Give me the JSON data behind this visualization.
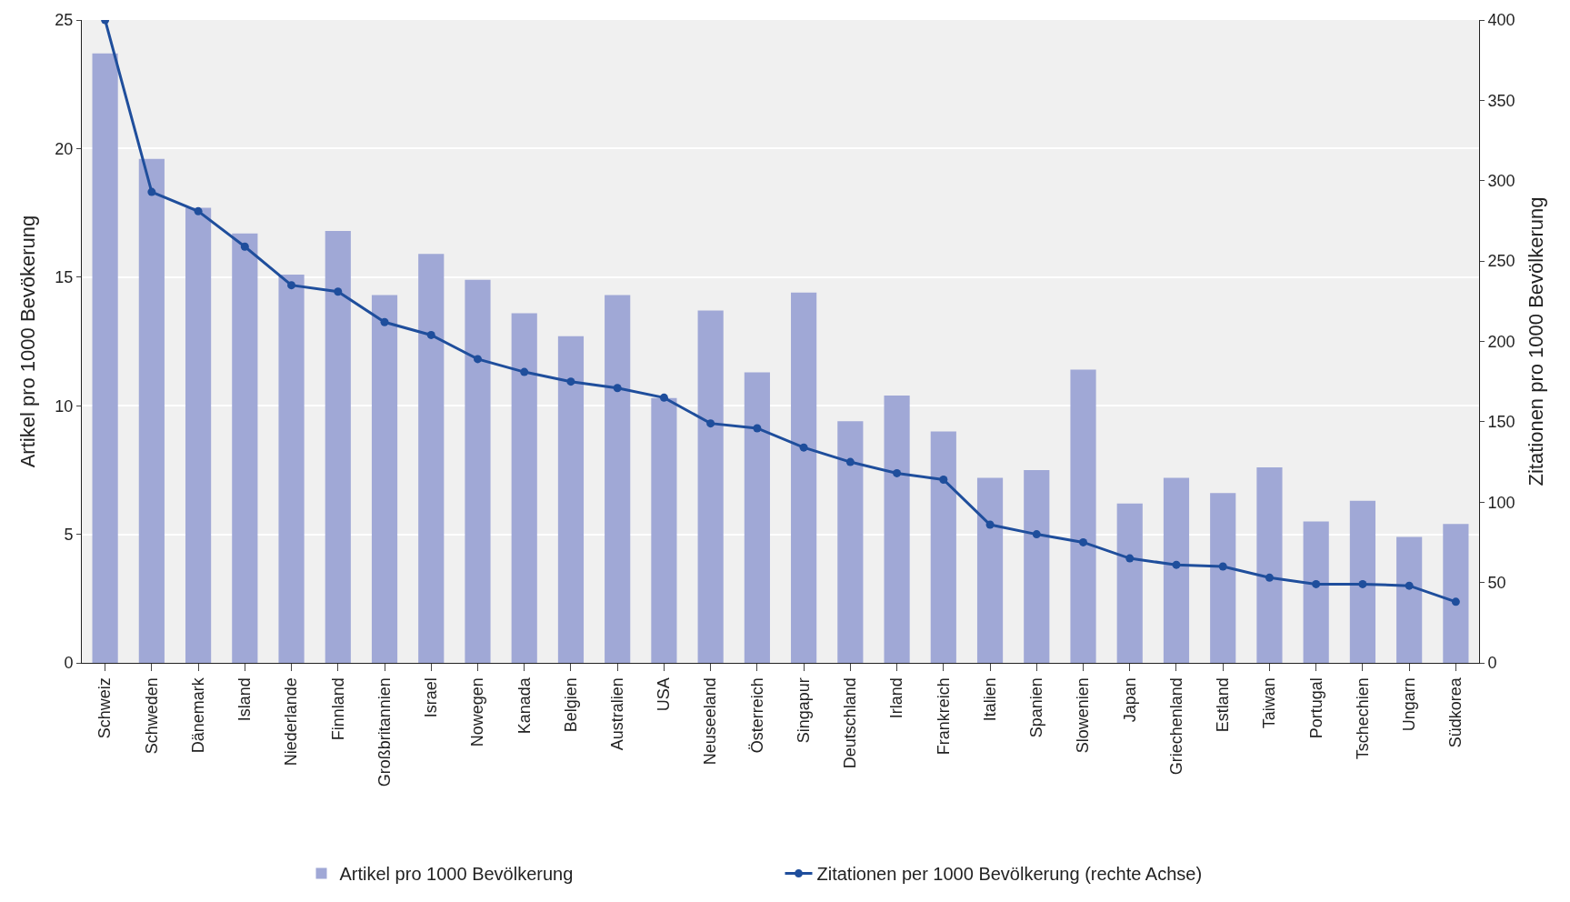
{
  "chart_data": {
    "type": "bar",
    "categories": [
      "Schweiz",
      "Schweden",
      "Dänemark",
      "Island",
      "Niederlande",
      "Finnland",
      "Großbritannien",
      "Israel",
      "Nowegen",
      "Kanada",
      "Belgien",
      "Australien",
      "USA",
      "Neuseeland",
      "Österreich",
      "Singapur",
      "Deutschland",
      "Irland",
      "Frankreich",
      "Italien",
      "Spanien",
      "Slowenien",
      "Japan",
      "Griechenland",
      "Estland",
      "Taiwan",
      "Portugal",
      "Tschechien",
      "Ungarn",
      "Südkorea"
    ],
    "series": [
      {
        "name": "Artikel pro 1000 Bevölkerung",
        "color": "#a0a8d6",
        "values": [
          23.7,
          19.6,
          17.7,
          16.7,
          15.1,
          16.8,
          14.3,
          15.9,
          14.9,
          13.6,
          12.7,
          14.3,
          10.3,
          13.7,
          11.3,
          14.4,
          9.4,
          10.4,
          9.0,
          7.2,
          7.5,
          11.4,
          6.2,
          7.2,
          6.6,
          7.6,
          5.5,
          6.3,
          4.9,
          5.4
        ]
      },
      {
        "name": "Zitationen per 1000 Bevölkerung (rechte Achse)",
        "type": "line",
        "axis": "y2",
        "color": "#1f4e9c",
        "marker": "circle",
        "line_style": "solid",
        "values": [
          400,
          293,
          281,
          259,
          235,
          231,
          212,
          204,
          189,
          181,
          175,
          171,
          165,
          149,
          146,
          134,
          125,
          118,
          114,
          86,
          80,
          75,
          65,
          61,
          60,
          53,
          49,
          49,
          48,
          38
        ]
      }
    ],
    "ylabel": "Artikel pro 1000 Bevökerung",
    "y2label": "Zitationen pro 1000 Bevölkerung",
    "ylim": [
      0,
      25
    ],
    "yticks": [
      0,
      5,
      10,
      15,
      20,
      25
    ],
    "y2lim": [
      0,
      400
    ],
    "y2ticks": [
      0,
      50,
      100,
      150,
      200,
      250,
      300,
      350,
      400
    ],
    "grid": "y",
    "legend": "bottom"
  }
}
